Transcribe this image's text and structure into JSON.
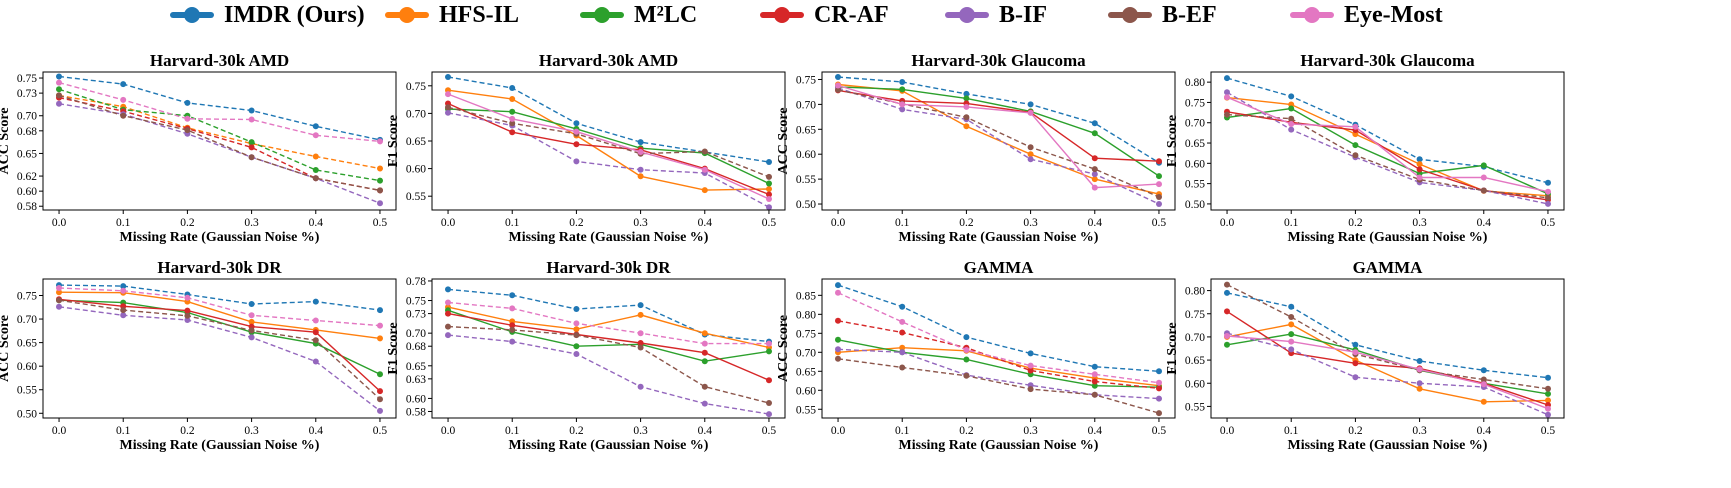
{
  "legend": [
    {
      "label": "IMDR (Ours)",
      "color": "#1f77b4"
    },
    {
      "label": "HFS-IL",
      "color": "#ff7f0e"
    },
    {
      "label": "M²LC",
      "color": "#2ca02c"
    },
    {
      "label": "CR-AF",
      "color": "#d62728"
    },
    {
      "label": "B-IF",
      "color": "#9467bd"
    },
    {
      "label": "B-EF",
      "color": "#8c564b"
    },
    {
      "label": "Eye-Most",
      "color": "#e377c2"
    }
  ],
  "chart_data": [
    {
      "type": "line",
      "title": "Harvard-30k AMD",
      "xlabel": "Missing Rate (Gaussian Noise %)",
      "ylabel": "ACC Score",
      "x": [
        0.0,
        0.1,
        0.2,
        0.3,
        0.4,
        0.5
      ],
      "xticks": [
        "0.0",
        "0.1",
        "0.2",
        "0.3",
        "0.4",
        "0.5"
      ],
      "yticks": [
        "0.58",
        "0.60",
        "0.62",
        "0.65",
        "0.68",
        "0.70",
        "0.73",
        "0.75"
      ],
      "ylim": [
        0.575,
        0.758
      ],
      "series": [
        {
          "name": "IMDR (Ours)",
          "color": "#1f77b4",
          "values": [
            0.752,
            0.742,
            0.717,
            0.707,
            0.686,
            0.668
          ],
          "style": "dashed"
        },
        {
          "name": "HFS-IL",
          "color": "#ff7f0e",
          "values": [
            0.727,
            0.712,
            0.684,
            0.663,
            0.646,
            0.63
          ],
          "style": "dashed"
        },
        {
          "name": "M²LC",
          "color": "#2ca02c",
          "values": [
            0.735,
            0.708,
            0.7,
            0.665,
            0.628,
            0.614
          ],
          "style": "dashed"
        },
        {
          "name": "CR-AF",
          "color": "#d62728",
          "values": [
            0.724,
            0.706,
            0.683,
            0.658,
            0.617,
            0.601
          ],
          "style": "dashed"
        },
        {
          "name": "B-IF",
          "color": "#9467bd",
          "values": [
            0.716,
            0.702,
            0.676,
            0.645,
            0.617,
            0.584
          ],
          "style": "dashed"
        },
        {
          "name": "B-EF",
          "color": "#8c564b",
          "values": [
            0.727,
            0.7,
            0.681,
            0.645,
            0.617,
            0.601
          ],
          "style": "dashed"
        },
        {
          "name": "Eye-Most",
          "color": "#e377c2",
          "values": [
            0.744,
            0.721,
            0.696,
            0.695,
            0.674,
            0.666
          ],
          "style": "dashed"
        }
      ]
    },
    {
      "type": "line",
      "title": "Harvard-30k AMD",
      "xlabel": "Missing Rate (Gaussian Noise %)",
      "ylabel": "F1 Score",
      "x": [
        0.0,
        0.1,
        0.2,
        0.3,
        0.4,
        0.5
      ],
      "xticks": [
        "0.0",
        "0.1",
        "0.2",
        "0.3",
        "0.4",
        "0.5"
      ],
      "yticks": [
        "0.55",
        "0.60",
        "0.65",
        "0.70",
        "0.75"
      ],
      "ylim": [
        0.525,
        0.775
      ],
      "series": [
        {
          "name": "IMDR (Ours)",
          "color": "#1f77b4",
          "values": [
            0.766,
            0.746,
            0.682,
            0.648,
            0.63,
            0.612
          ],
          "style": "dashed"
        },
        {
          "name": "HFS-IL",
          "color": "#ff7f0e",
          "values": [
            0.742,
            0.726,
            0.66,
            0.586,
            0.561,
            0.563
          ],
          "style": "solid"
        },
        {
          "name": "M²LC",
          "color": "#2ca02c",
          "values": [
            0.708,
            0.703,
            0.672,
            0.637,
            0.628,
            0.573
          ],
          "style": "solid"
        },
        {
          "name": "CR-AF",
          "color": "#d62728",
          "values": [
            0.718,
            0.666,
            0.644,
            0.634,
            0.6,
            0.553
          ],
          "style": "solid"
        },
        {
          "name": "B-IF",
          "color": "#9467bd",
          "values": [
            0.701,
            0.678,
            0.613,
            0.598,
            0.592,
            0.53
          ],
          "style": "dashed"
        },
        {
          "name": "B-EF",
          "color": "#8c564b",
          "values": [
            0.711,
            0.682,
            0.663,
            0.627,
            0.631,
            0.585
          ],
          "style": "dashed"
        },
        {
          "name": "Eye-Most",
          "color": "#e377c2",
          "values": [
            0.735,
            0.69,
            0.667,
            0.63,
            0.598,
            0.545
          ],
          "style": "solid"
        }
      ]
    },
    {
      "type": "line",
      "title": "Harvard-30k Glaucoma",
      "xlabel": "Missing Rate (Gaussian Noise %)",
      "ylabel": "ACC Score",
      "x": [
        0.0,
        0.1,
        0.2,
        0.3,
        0.4,
        0.5
      ],
      "xticks": [
        "0.0",
        "0.1",
        "0.2",
        "0.3",
        "0.4",
        "0.5"
      ],
      "yticks": [
        "0.50",
        "0.55",
        "0.60",
        "0.65",
        "0.70",
        "0.75"
      ],
      "ylim": [
        0.488,
        0.765
      ],
      "series": [
        {
          "name": "IMDR (Ours)",
          "color": "#1f77b4",
          "values": [
            0.755,
            0.745,
            0.721,
            0.7,
            0.662,
            0.583
          ],
          "style": "dashed"
        },
        {
          "name": "HFS-IL",
          "color": "#ff7f0e",
          "values": [
            0.74,
            0.727,
            0.656,
            0.6,
            0.55,
            0.52
          ],
          "style": "solid"
        },
        {
          "name": "M²LC",
          "color": "#2ca02c",
          "values": [
            0.735,
            0.73,
            0.712,
            0.686,
            0.642,
            0.556
          ],
          "style": "solid"
        },
        {
          "name": "CR-AF",
          "color": "#d62728",
          "values": [
            0.728,
            0.707,
            0.702,
            0.684,
            0.592,
            0.586
          ],
          "style": "solid"
        },
        {
          "name": "B-IF",
          "color": "#9467bd",
          "values": [
            0.733,
            0.69,
            0.67,
            0.59,
            0.56,
            0.5
          ],
          "style": "dashed"
        },
        {
          "name": "B-EF",
          "color": "#8c564b",
          "values": [
            0.729,
            0.701,
            0.674,
            0.614,
            0.57,
            0.514
          ],
          "style": "dashed"
        },
        {
          "name": "Eye-Most",
          "color": "#e377c2",
          "values": [
            0.738,
            0.7,
            0.695,
            0.683,
            0.533,
            0.54
          ],
          "style": "solid"
        }
      ]
    },
    {
      "type": "line",
      "title": "Harvard-30k Glaucoma",
      "xlabel": "Missing Rate (Gaussian Noise %)",
      "ylabel": "F1 Score",
      "x": [
        0.0,
        0.1,
        0.2,
        0.3,
        0.4,
        0.5
      ],
      "xticks": [
        "0.0",
        "0.1",
        "0.2",
        "0.3",
        "0.4",
        "0.5"
      ],
      "yticks": [
        "0.50",
        "0.55",
        "0.60",
        "0.65",
        "0.70",
        "0.75",
        "0.80"
      ],
      "ylim": [
        0.485,
        0.825
      ],
      "series": [
        {
          "name": "IMDR (Ours)",
          "color": "#1f77b4",
          "values": [
            0.81,
            0.765,
            0.695,
            0.61,
            0.592,
            0.552
          ],
          "style": "dashed"
        },
        {
          "name": "HFS-IL",
          "color": "#ff7f0e",
          "values": [
            0.762,
            0.745,
            0.672,
            0.598,
            0.532,
            0.52
          ],
          "style": "solid"
        },
        {
          "name": "M²LC",
          "color": "#2ca02c",
          "values": [
            0.713,
            0.735,
            0.645,
            0.575,
            0.595,
            0.525
          ],
          "style": "solid"
        },
        {
          "name": "CR-AF",
          "color": "#d62728",
          "values": [
            0.727,
            0.701,
            0.682,
            0.585,
            0.533,
            0.51
          ],
          "style": "solid"
        },
        {
          "name": "B-IF",
          "color": "#9467bd",
          "values": [
            0.775,
            0.683,
            0.615,
            0.553,
            0.533,
            0.5
          ],
          "style": "dashed"
        },
        {
          "name": "B-EF",
          "color": "#8c564b",
          "values": [
            0.72,
            0.71,
            0.62,
            0.56,
            0.533,
            0.515
          ],
          "style": "dashed"
        },
        {
          "name": "Eye-Most",
          "color": "#e377c2",
          "values": [
            0.763,
            0.697,
            0.69,
            0.565,
            0.565,
            0.53
          ],
          "style": "solid"
        }
      ]
    },
    {
      "type": "line",
      "title": "Harvard-30k DR",
      "xlabel": "Missing Rate (Gaussian Noise %)",
      "ylabel": "ACC Score",
      "x": [
        0.0,
        0.1,
        0.2,
        0.3,
        0.4,
        0.5
      ],
      "xticks": [
        "0.0",
        "0.1",
        "0.2",
        "0.3",
        "0.4",
        "0.5"
      ],
      "yticks": [
        "0.50",
        "0.55",
        "0.60",
        "0.65",
        "0.70",
        "0.75"
      ],
      "ylim": [
        0.49,
        0.785
      ],
      "series": [
        {
          "name": "IMDR (Ours)",
          "color": "#1f77b4",
          "values": [
            0.772,
            0.77,
            0.752,
            0.732,
            0.737,
            0.719
          ],
          "style": "dashed"
        },
        {
          "name": "HFS-IL",
          "color": "#ff7f0e",
          "values": [
            0.757,
            0.756,
            0.737,
            0.694,
            0.677,
            0.659
          ],
          "style": "solid"
        },
        {
          "name": "M²LC",
          "color": "#2ca02c",
          "values": [
            0.74,
            0.735,
            0.714,
            0.672,
            0.648,
            0.583
          ],
          "style": "solid"
        },
        {
          "name": "CR-AF",
          "color": "#d62728",
          "values": [
            0.742,
            0.727,
            0.718,
            0.684,
            0.672,
            0.547
          ],
          "style": "solid"
        },
        {
          "name": "B-IF",
          "color": "#9467bd",
          "values": [
            0.726,
            0.708,
            0.698,
            0.661,
            0.61,
            0.505
          ],
          "style": "dashed"
        },
        {
          "name": "B-EF",
          "color": "#8c564b",
          "values": [
            0.74,
            0.719,
            0.707,
            0.676,
            0.655,
            0.53
          ],
          "style": "dashed"
        },
        {
          "name": "Eye-Most",
          "color": "#e377c2",
          "values": [
            0.766,
            0.76,
            0.745,
            0.708,
            0.697,
            0.686
          ],
          "style": "dashed"
        }
      ]
    },
    {
      "type": "line",
      "title": "Harvard-30k DR",
      "xlabel": "Missing Rate (Gaussian Noise %)",
      "ylabel": "F1 Score",
      "x": [
        0.0,
        0.1,
        0.2,
        0.3,
        0.4,
        0.5
      ],
      "xticks": [
        "0.0",
        "0.1",
        "0.2",
        "0.3",
        "0.4",
        "0.5"
      ],
      "yticks": [
        "0.58",
        "0.60",
        "0.63",
        "0.65",
        "0.68",
        "0.70",
        "0.73",
        "0.75",
        "0.78"
      ],
      "ylim": [
        0.57,
        0.783
      ],
      "series": [
        {
          "name": "IMDR (Ours)",
          "color": "#1f77b4",
          "values": [
            0.767,
            0.758,
            0.737,
            0.743,
            0.698,
            0.687
          ],
          "style": "dashed"
        },
        {
          "name": "HFS-IL",
          "color": "#ff7f0e",
          "values": [
            0.74,
            0.718,
            0.706,
            0.728,
            0.7,
            0.678
          ],
          "style": "solid"
        },
        {
          "name": "M²LC",
          "color": "#2ca02c",
          "values": [
            0.735,
            0.702,
            0.68,
            0.683,
            0.657,
            0.672
          ],
          "style": "solid"
        },
        {
          "name": "CR-AF",
          "color": "#d62728",
          "values": [
            0.73,
            0.712,
            0.698,
            0.685,
            0.67,
            0.628
          ],
          "style": "solid"
        },
        {
          "name": "B-IF",
          "color": "#9467bd",
          "values": [
            0.697,
            0.687,
            0.668,
            0.618,
            0.592,
            0.576
          ],
          "style": "dashed"
        },
        {
          "name": "B-EF",
          "color": "#8c564b",
          "values": [
            0.71,
            0.705,
            0.697,
            0.678,
            0.618,
            0.593
          ],
          "style": "dashed"
        },
        {
          "name": "Eye-Most",
          "color": "#e377c2",
          "values": [
            0.747,
            0.738,
            0.715,
            0.7,
            0.684,
            0.684
          ],
          "style": "dashed"
        }
      ]
    },
    {
      "type": "line",
      "title": "GAMMA",
      "xlabel": "Missing Rate (Gaussian Noise %)",
      "ylabel": "ACC Score",
      "x": [
        0.0,
        0.1,
        0.2,
        0.3,
        0.4,
        0.5
      ],
      "xticks": [
        "0.0",
        "0.1",
        "0.2",
        "0.3",
        "0.4",
        "0.5"
      ],
      "yticks": [
        "0.55",
        "0.60",
        "0.65",
        "0.70",
        "0.75",
        "0.80",
        "0.85"
      ],
      "ylim": [
        0.527,
        0.893
      ],
      "series": [
        {
          "name": "IMDR (Ours)",
          "color": "#1f77b4",
          "values": [
            0.877,
            0.82,
            0.74,
            0.697,
            0.662,
            0.65
          ],
          "style": "dashed"
        },
        {
          "name": "HFS-IL",
          "color": "#ff7f0e",
          "values": [
            0.7,
            0.712,
            0.704,
            0.658,
            0.632,
            0.612
          ],
          "style": "solid"
        },
        {
          "name": "M²LC",
          "color": "#2ca02c",
          "values": [
            0.733,
            0.7,
            0.681,
            0.642,
            0.612,
            0.608
          ],
          "style": "solid"
        },
        {
          "name": "CR-AF",
          "color": "#d62728",
          "values": [
            0.783,
            0.752,
            0.712,
            0.652,
            0.623,
            0.605
          ],
          "style": "dashed"
        },
        {
          "name": "B-IF",
          "color": "#9467bd",
          "values": [
            0.708,
            0.7,
            0.64,
            0.613,
            0.588,
            0.578
          ],
          "style": "dashed"
        },
        {
          "name": "B-EF",
          "color": "#8c564b",
          "values": [
            0.683,
            0.66,
            0.638,
            0.603,
            0.588,
            0.54
          ],
          "style": "dashed"
        },
        {
          "name": "Eye-Most",
          "color": "#e377c2",
          "values": [
            0.857,
            0.78,
            0.706,
            0.665,
            0.642,
            0.62
          ],
          "style": "dashed"
        }
      ]
    },
    {
      "type": "line",
      "title": "GAMMA",
      "xlabel": "Missing Rate (Gaussian Noise %)",
      "ylabel": "F1 Score",
      "x": [
        0.0,
        0.1,
        0.2,
        0.3,
        0.4,
        0.5
      ],
      "xticks": [
        "0.0",
        "0.1",
        "0.2",
        "0.3",
        "0.4",
        "0.5"
      ],
      "yticks": [
        "0.55",
        "0.60",
        "0.65",
        "0.70",
        "0.75",
        "0.80"
      ],
      "ylim": [
        0.525,
        0.825
      ],
      "series": [
        {
          "name": "IMDR (Ours)",
          "color": "#1f77b4",
          "values": [
            0.795,
            0.765,
            0.683,
            0.648,
            0.628,
            0.612
          ],
          "style": "dashed"
        },
        {
          "name": "HFS-IL",
          "color": "#ff7f0e",
          "values": [
            0.7,
            0.727,
            0.65,
            0.588,
            0.56,
            0.563
          ],
          "style": "solid"
        },
        {
          "name": "M²LC",
          "color": "#2ca02c",
          "values": [
            0.683,
            0.706,
            0.672,
            0.628,
            0.6,
            0.577
          ],
          "style": "solid"
        },
        {
          "name": "CR-AF",
          "color": "#d62728",
          "values": [
            0.755,
            0.665,
            0.643,
            0.632,
            0.6,
            0.553
          ],
          "style": "solid"
        },
        {
          "name": "B-IF",
          "color": "#9467bd",
          "values": [
            0.708,
            0.673,
            0.613,
            0.6,
            0.592,
            0.532
          ],
          "style": "dashed"
        },
        {
          "name": "B-EF",
          "color": "#8c564b",
          "values": [
            0.813,
            0.743,
            0.663,
            0.628,
            0.608,
            0.588
          ],
          "style": "dashed"
        },
        {
          "name": "Eye-Most",
          "color": "#e377c2",
          "values": [
            0.702,
            0.69,
            0.667,
            0.63,
            0.598,
            0.545
          ],
          "style": "solid"
        }
      ]
    }
  ]
}
